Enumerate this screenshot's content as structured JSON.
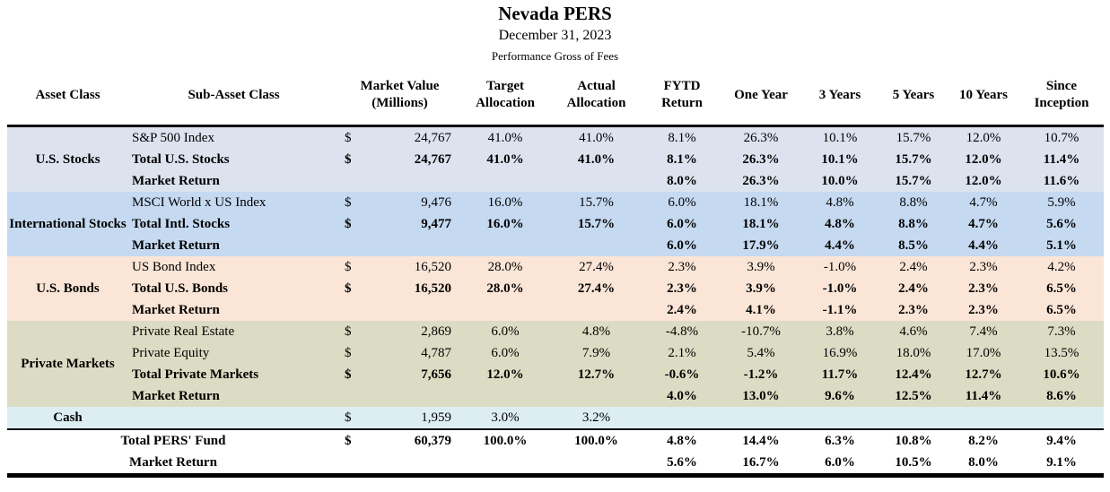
{
  "header": {
    "title": "Nevada PERS",
    "date": "December 31, 2023",
    "subtitle": "Performance Gross of Fees"
  },
  "table": {
    "columns": [
      "Asset Class",
      "Sub-Asset Class",
      "Market Value (Millions)",
      "Target Allocation",
      "Actual Allocation",
      "FYTD Return",
      "One Year",
      "3 Years",
      "5 Years",
      "10 Years",
      "Since Inception"
    ],
    "groups": [
      {
        "asset_class": "U.S. Stocks",
        "bg": "#dce3ef",
        "rows": [
          {
            "label": "S&P 500 Index",
            "bold": false,
            "cells": [
              "$",
              "24,767",
              "41.0%",
              "41.0%",
              "8.1%",
              "26.3%",
              "10.1%",
              "15.7%",
              "12.0%",
              "10.7%"
            ]
          },
          {
            "label": "Total U.S. Stocks",
            "bold": true,
            "cells": [
              "$",
              "24,767",
              "41.0%",
              "41.0%",
              "8.1%",
              "26.3%",
              "10.1%",
              "15.7%",
              "12.0%",
              "11.4%"
            ]
          },
          {
            "label": "Market Return",
            "bold": true,
            "cells": [
              "",
              "",
              "",
              "",
              "8.0%",
              "26.3%",
              "10.0%",
              "15.7%",
              "12.0%",
              "11.6%"
            ]
          }
        ]
      },
      {
        "asset_class": "International Stocks",
        "bg": "#c5d9f1",
        "rows": [
          {
            "label": "MSCI World x US Index",
            "bold": false,
            "cells": [
              "$",
              "9,476",
              "16.0%",
              "15.7%",
              "6.0%",
              "18.1%",
              "4.8%",
              "8.8%",
              "4.7%",
              "5.9%"
            ]
          },
          {
            "label": "Total Intl. Stocks",
            "bold": true,
            "cells": [
              "$",
              "9,477",
              "16.0%",
              "15.7%",
              "6.0%",
              "18.1%",
              "4.8%",
              "8.8%",
              "4.7%",
              "5.6%"
            ]
          },
          {
            "label": "Market Return",
            "bold": true,
            "cells": [
              "",
              "",
              "",
              "",
              "6.0%",
              "17.9%",
              "4.4%",
              "8.5%",
              "4.4%",
              "5.1%"
            ]
          }
        ]
      },
      {
        "asset_class": "U.S. Bonds",
        "bg": "#fbe5d6",
        "rows": [
          {
            "label": "US Bond Index",
            "bold": false,
            "cells": [
              "$",
              "16,520",
              "28.0%",
              "27.4%",
              "2.3%",
              "3.9%",
              "-1.0%",
              "2.4%",
              "2.3%",
              "4.2%"
            ]
          },
          {
            "label": "Total U.S. Bonds",
            "bold": true,
            "cells": [
              "$",
              "16,520",
              "28.0%",
              "27.4%",
              "2.3%",
              "3.9%",
              "-1.0%",
              "2.4%",
              "2.3%",
              "6.5%"
            ]
          },
          {
            "label": "Market Return",
            "bold": true,
            "cells": [
              "",
              "",
              "",
              "",
              "2.4%",
              "4.1%",
              "-1.1%",
              "2.3%",
              "2.3%",
              "6.5%"
            ]
          }
        ]
      },
      {
        "asset_class": "Private Markets",
        "bg": "#dbdcc3",
        "rows": [
          {
            "label": "Private Real Estate",
            "bold": false,
            "cells": [
              "$",
              "2,869",
              "6.0%",
              "4.8%",
              "-4.8%",
              "-10.7%",
              "3.8%",
              "4.6%",
              "7.4%",
              "7.3%"
            ]
          },
          {
            "label": "Private Equity",
            "bold": false,
            "cells": [
              "$",
              "4,787",
              "6.0%",
              "7.9%",
              "2.1%",
              "5.4%",
              "16.9%",
              "18.0%",
              "17.0%",
              "13.5%"
            ]
          },
          {
            "label": "Total Private Markets",
            "bold": true,
            "cells": [
              "$",
              "7,656",
              "12.0%",
              "12.7%",
              "-0.6%",
              "-1.2%",
              "11.7%",
              "12.4%",
              "12.7%",
              "10.6%"
            ]
          },
          {
            "label": "Market Return",
            "bold": true,
            "cells": [
              "",
              "",
              "",
              "",
              "4.0%",
              "13.0%",
              "9.6%",
              "12.5%",
              "11.4%",
              "8.6%"
            ]
          }
        ]
      },
      {
        "asset_class": "Cash",
        "bg": "#ddeef3",
        "rows": [
          {
            "label": "",
            "bold": false,
            "cells": [
              "$",
              "1,959",
              "3.0%",
              "3.2%",
              "",
              "",
              "",
              "",
              "",
              ""
            ]
          }
        ]
      }
    ],
    "footer_rows": [
      {
        "label": "Total PERS' Fund",
        "cells": [
          "$",
          "60,379",
          "100.0%",
          "100.0%",
          "4.8%",
          "14.4%",
          "6.3%",
          "10.8%",
          "8.2%",
          "9.4%"
        ]
      },
      {
        "label": "Market Return",
        "cells": [
          "",
          "",
          "",
          "",
          "5.6%",
          "16.7%",
          "6.0%",
          "10.5%",
          "8.0%",
          "9.1%"
        ]
      }
    ]
  },
  "colors": {
    "us_stocks_band": "#dce3ef",
    "intl_stocks_band": "#c5d9f1",
    "us_bonds_band": "#fbe5d6",
    "private_markets_band": "#dbdcc3",
    "cash_band": "#ddeef3",
    "rule_line": "#000000"
  }
}
